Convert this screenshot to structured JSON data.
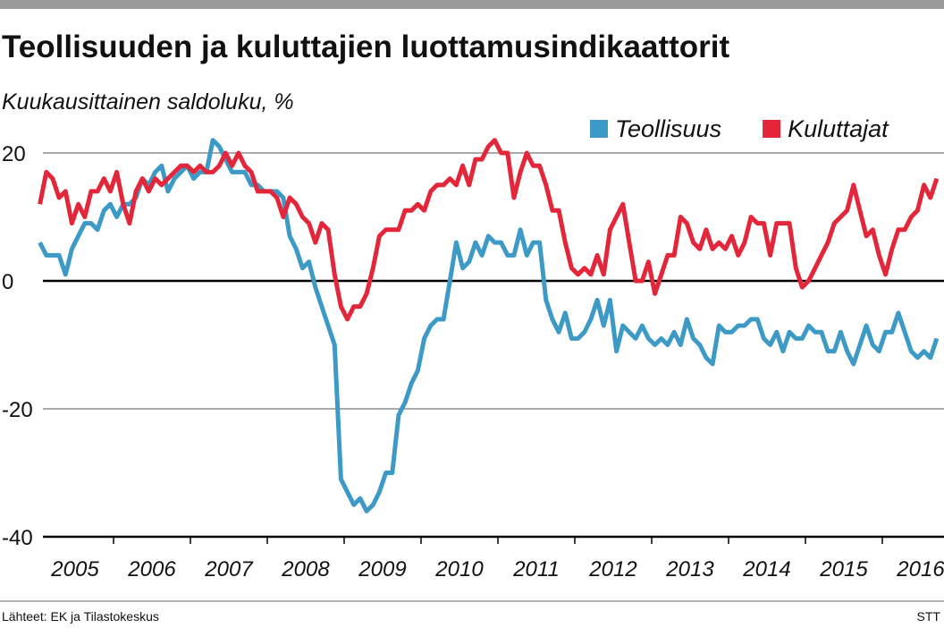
{
  "chart_data": {
    "type": "line",
    "title": "Teollisuuden ja kuluttajien luottamusindikaattorit",
    "subtitle": "Kuukausittainen saldoluku, %",
    "source": "Lähteet: EK ja Tilastokeskus",
    "credit": "STT",
    "categories": [
      "2005",
      null,
      null,
      null,
      null,
      null,
      null,
      null,
      null,
      null,
      null,
      null,
      "2006",
      null,
      null,
      null,
      null,
      null,
      null,
      null,
      null,
      null,
      null,
      null,
      "2007",
      null,
      null,
      null,
      null,
      null,
      null,
      null,
      null,
      null,
      null,
      null,
      "2008",
      null,
      null,
      null,
      null,
      null,
      null,
      null,
      null,
      null,
      null,
      null,
      "2009",
      null,
      null,
      null,
      null,
      null,
      null,
      null,
      null,
      null,
      null,
      null,
      "2010",
      null,
      null,
      null,
      null,
      null,
      null,
      null,
      null,
      null,
      null,
      null,
      "2011",
      null,
      null,
      null,
      null,
      null,
      null,
      null,
      null,
      null,
      null,
      null,
      "2012",
      null,
      null,
      null,
      null,
      null,
      null,
      null,
      null,
      null,
      null,
      null,
      "2013",
      null,
      null,
      null,
      null,
      null,
      null,
      null,
      null,
      null,
      null,
      null,
      "2014",
      null,
      null,
      null,
      null,
      null,
      null,
      null,
      null,
      null,
      null,
      null,
      "2015",
      null,
      null,
      null,
      null,
      null,
      null,
      null,
      null,
      null,
      null,
      null,
      "2016",
      null,
      null,
      null,
      null,
      null,
      null,
      null,
      null
    ],
    "series": [
      {
        "name": "Teollisuus",
        "color": "#3d9ac6",
        "values": [
          6,
          4,
          4,
          4,
          1,
          5,
          7,
          9,
          9,
          8,
          11,
          12,
          10,
          12,
          12,
          13,
          16,
          15,
          17,
          18,
          14,
          16,
          17,
          18,
          16,
          17,
          17,
          22,
          21,
          19,
          17,
          17,
          17,
          15,
          15,
          14,
          14,
          14,
          13,
          7,
          5,
          2,
          3,
          -1,
          -4,
          -7,
          -10,
          -31,
          -33,
          -35,
          -34,
          -36,
          -35,
          -33,
          -30,
          -30,
          -21,
          -19,
          -16,
          -14,
          -9,
          -7,
          -6,
          -6,
          0,
          6,
          2,
          3,
          6,
          4,
          7,
          6,
          6,
          4,
          4,
          8,
          4,
          6,
          6,
          -3,
          -6,
          -8,
          -5,
          -9,
          -9,
          -8,
          -6,
          -3,
          -7,
          -3,
          -11,
          -7,
          -8,
          -9,
          -7,
          -9,
          -10,
          -9,
          -10,
          -8,
          -10,
          -6,
          -9,
          -10,
          -12,
          -13,
          -7,
          -8,
          -8,
          -7,
          -7,
          -6,
          -6,
          -9,
          -10,
          -8,
          -11,
          -8,
          -9,
          -9,
          -7,
          -8,
          -8,
          -11,
          -11,
          -8,
          -11,
          -13,
          -10,
          -7,
          -10,
          -11,
          -8,
          -8,
          -5,
          -8,
          -11,
          -12,
          -11,
          -12,
          -9
        ]
      },
      {
        "name": "Kuluttajat",
        "color": "#e3263a",
        "values": [
          12,
          17,
          16,
          13,
          14,
          9,
          12,
          10,
          14,
          14,
          16,
          14,
          17,
          12,
          9,
          14,
          16,
          14,
          16,
          15,
          16,
          17,
          18,
          18,
          17,
          18,
          17,
          17,
          18,
          20,
          18,
          20,
          18,
          17,
          14,
          14,
          14,
          13,
          10,
          13,
          12,
          10,
          9,
          6,
          9,
          8,
          1,
          -4,
          -6,
          -4,
          -4,
          -2,
          2,
          7,
          8,
          8,
          8,
          11,
          11,
          12,
          11,
          14,
          15,
          15,
          16,
          15,
          18,
          15,
          19,
          19,
          21,
          22,
          20,
          20,
          13,
          17,
          20,
          18,
          18,
          15,
          11,
          11,
          6,
          2,
          1,
          2,
          1,
          4,
          1,
          8,
          10,
          12,
          6,
          0,
          0,
          3,
          -2,
          1,
          4,
          4,
          10,
          9,
          6,
          5,
          8,
          5,
          6,
          5,
          7,
          4,
          6,
          10,
          9,
          9,
          4,
          9,
          9,
          9,
          2,
          -1,
          0,
          2,
          4,
          6,
          9,
          10,
          11,
          15,
          11,
          7,
          8,
          4,
          1,
          5,
          8,
          8,
          10,
          11,
          15,
          13,
          16
        ]
      }
    ],
    "ylim": [
      -40,
      24
    ],
    "yticks": [
      -40,
      -20,
      0,
      20
    ],
    "grid": true,
    "legend": "upper right"
  }
}
